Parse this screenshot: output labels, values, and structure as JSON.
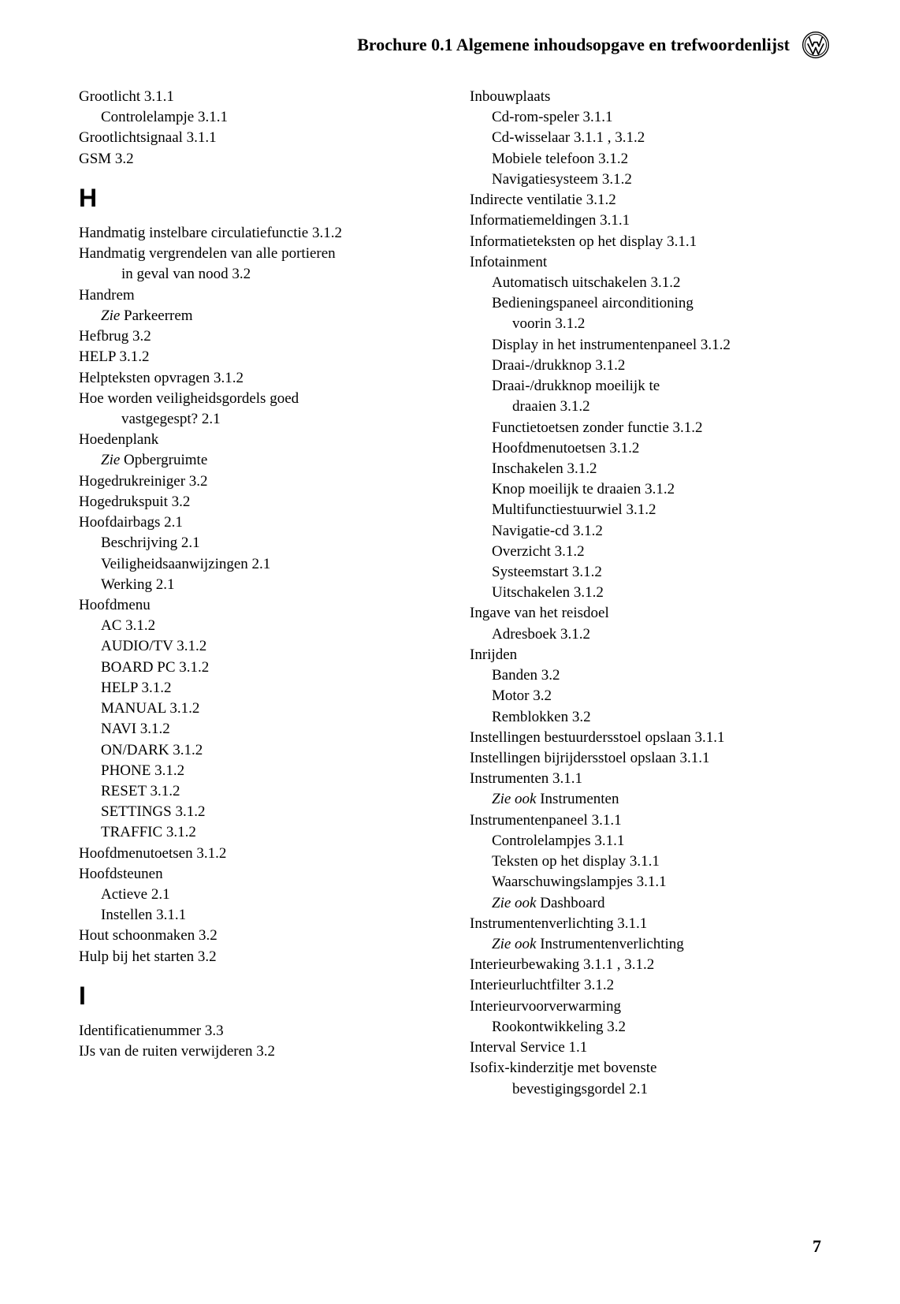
{
  "header": {
    "title": "Brochure 0.1  Algemene inhoudsopgave en trefwoordenlijst"
  },
  "page_number": "7",
  "colors": {
    "background": "#ffffff",
    "text": "#000000"
  },
  "left_column": [
    {
      "t": "Grootlicht  3.1.1",
      "lvl": 0
    },
    {
      "t": "Controlelampje  3.1.1",
      "lvl": 1
    },
    {
      "t": "Grootlichtsignaal  3.1.1",
      "lvl": 0
    },
    {
      "t": "GSM  3.2",
      "lvl": 0
    },
    {
      "letter": "H"
    },
    {
      "t": "Handmatig instelbare circulatiefunctie  3.1.2",
      "lvl": 0
    },
    {
      "t": "Handmatig vergrendelen van alle portieren",
      "lvl": 0
    },
    {
      "t": "in geval van nood  3.2",
      "lvl": 2
    },
    {
      "t": "Handrem",
      "lvl": 0
    },
    {
      "pre": "Zie ",
      "t": "Parkeerrem",
      "lvl": 1,
      "italic_pre": true
    },
    {
      "t": "Hefbrug  3.2",
      "lvl": 0
    },
    {
      "t": "HELP  3.1.2",
      "lvl": 0
    },
    {
      "t": "Helpteksten opvragen  3.1.2",
      "lvl": 0
    },
    {
      "t": "Hoe worden veiligheidsgordels goed",
      "lvl": 0
    },
    {
      "t": "vastgegespt?  2.1",
      "lvl": 2
    },
    {
      "t": "Hoedenplank",
      "lvl": 0
    },
    {
      "pre": "Zie ",
      "t": "Opbergruimte",
      "lvl": 1,
      "italic_pre": true
    },
    {
      "t": "Hogedrukreiniger  3.2",
      "lvl": 0
    },
    {
      "t": "Hogedrukspuit  3.2",
      "lvl": 0
    },
    {
      "t": "Hoofdairbags  2.1",
      "lvl": 0
    },
    {
      "t": "Beschrijving  2.1",
      "lvl": 1
    },
    {
      "t": "Veiligheidsaanwijzingen  2.1",
      "lvl": 1
    },
    {
      "t": "Werking  2.1",
      "lvl": 1
    },
    {
      "t": "Hoofdmenu",
      "lvl": 0
    },
    {
      "t": "AC  3.1.2",
      "lvl": 1
    },
    {
      "t": "AUDIO/TV  3.1.2",
      "lvl": 1
    },
    {
      "t": "BOARD PC  3.1.2",
      "lvl": 1
    },
    {
      "t": "HELP  3.1.2",
      "lvl": 1
    },
    {
      "t": "MANUAL  3.1.2",
      "lvl": 1
    },
    {
      "t": "NAVI  3.1.2",
      "lvl": 1
    },
    {
      "t": "ON/DARK  3.1.2",
      "lvl": 1
    },
    {
      "t": "PHONE  3.1.2",
      "lvl": 1
    },
    {
      "t": "RESET  3.1.2",
      "lvl": 1
    },
    {
      "t": "SETTINGS  3.1.2",
      "lvl": 1
    },
    {
      "t": "TRAFFIC  3.1.2",
      "lvl": 1
    },
    {
      "t": "Hoofdmenutoetsen  3.1.2",
      "lvl": 0
    },
    {
      "t": "Hoofdsteunen",
      "lvl": 0
    },
    {
      "t": "Actieve  2.1",
      "lvl": 1
    },
    {
      "t": "Instellen  3.1.1",
      "lvl": 1
    },
    {
      "t": "Hout schoonmaken  3.2",
      "lvl": 0
    },
    {
      "t": "Hulp bij het starten  3.2",
      "lvl": 0
    },
    {
      "letter": "I"
    },
    {
      "t": "Identificatienummer  3.3",
      "lvl": 0
    },
    {
      "t": "IJs van de ruiten verwijderen  3.2",
      "lvl": 0
    }
  ],
  "right_column": [
    {
      "t": "Inbouwplaats",
      "lvl": 0
    },
    {
      "t": "Cd-rom-speler  3.1.1",
      "lvl": 1
    },
    {
      "t": "Cd-wisselaar  3.1.1 , 3.1.2",
      "lvl": 1
    },
    {
      "t": "Mobiele telefoon  3.1.2",
      "lvl": 1
    },
    {
      "t": "Navigatiesysteem  3.1.2",
      "lvl": 1
    },
    {
      "t": "Indirecte ventilatie  3.1.2",
      "lvl": 0
    },
    {
      "t": "Informatiemeldingen  3.1.1",
      "lvl": 0
    },
    {
      "t": "Informatieteksten op het display  3.1.1",
      "lvl": 0
    },
    {
      "t": "Infotainment",
      "lvl": 0
    },
    {
      "t": "Automatisch uitschakelen  3.1.2",
      "lvl": 1
    },
    {
      "t": "Bedieningspaneel airconditioning",
      "lvl": 1
    },
    {
      "t": "voorin  3.1.2",
      "lvl": 2
    },
    {
      "t": "Display in het instrumentenpaneel  3.1.2",
      "lvl": 1
    },
    {
      "t": "Draai-/drukknop  3.1.2",
      "lvl": 1
    },
    {
      "t": "Draai-/drukknop moeilijk te",
      "lvl": 1
    },
    {
      "t": "draaien  3.1.2",
      "lvl": 2
    },
    {
      "t": "Functietoetsen zonder functie  3.1.2",
      "lvl": 1
    },
    {
      "t": "Hoofdmenutoetsen  3.1.2",
      "lvl": 1
    },
    {
      "t": "Inschakelen  3.1.2",
      "lvl": 1
    },
    {
      "t": "Knop moeilijk te draaien  3.1.2",
      "lvl": 1
    },
    {
      "t": "Multifunctiestuurwiel  3.1.2",
      "lvl": 1
    },
    {
      "t": "Navigatie-cd  3.1.2",
      "lvl": 1
    },
    {
      "t": "Overzicht  3.1.2",
      "lvl": 1
    },
    {
      "t": "Systeemstart  3.1.2",
      "lvl": 1
    },
    {
      "t": "Uitschakelen  3.1.2",
      "lvl": 1
    },
    {
      "t": "Ingave van het reisdoel",
      "lvl": 0
    },
    {
      "t": "Adresboek  3.1.2",
      "lvl": 1
    },
    {
      "t": "Inrijden",
      "lvl": 0
    },
    {
      "t": "Banden  3.2",
      "lvl": 1
    },
    {
      "t": "Motor  3.2",
      "lvl": 1
    },
    {
      "t": "Remblokken  3.2",
      "lvl": 1
    },
    {
      "t": "Instellingen bestuurdersstoel opslaan  3.1.1",
      "lvl": 0
    },
    {
      "t": "Instellingen bijrijdersstoel opslaan  3.1.1",
      "lvl": 0
    },
    {
      "t": "Instrumenten  3.1.1",
      "lvl": 0
    },
    {
      "pre": "Zie ook ",
      "t": "Instrumenten",
      "lvl": 1,
      "italic_pre": true
    },
    {
      "t": "Instrumentenpaneel  3.1.1",
      "lvl": 0
    },
    {
      "t": "Controlelampjes  3.1.1",
      "lvl": 1
    },
    {
      "t": "Teksten op het display  3.1.1",
      "lvl": 1
    },
    {
      "t": "Waarschuwingslampjes  3.1.1",
      "lvl": 1
    },
    {
      "pre": "Zie ook ",
      "t": "Dashboard",
      "lvl": 1,
      "italic_pre": true
    },
    {
      "t": "Instrumentenverlichting  3.1.1",
      "lvl": 0
    },
    {
      "pre": "Zie ook ",
      "t": "Instrumentenverlichting",
      "lvl": 1,
      "italic_pre": true
    },
    {
      "t": "Interieurbewaking  3.1.1 , 3.1.2",
      "lvl": 0
    },
    {
      "t": "Interieurluchtfilter  3.1.2",
      "lvl": 0
    },
    {
      "t": "Interieurvoorverwarming",
      "lvl": 0
    },
    {
      "t": "Rookontwikkeling  3.2",
      "lvl": 1
    },
    {
      "t": "Interval Service  1.1",
      "lvl": 0
    },
    {
      "t": "Isofix-kinderzitje met bovenste",
      "lvl": 0
    },
    {
      "t": "bevestigingsgordel  2.1",
      "lvl": 2
    }
  ]
}
